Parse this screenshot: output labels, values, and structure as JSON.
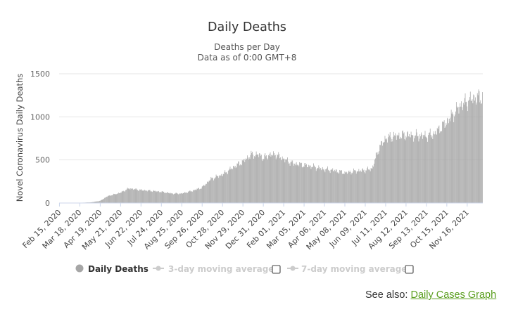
{
  "chart_data": {
    "type": "bar",
    "title": "Daily Deaths",
    "subtitle_line1": "Deaths per Day",
    "subtitle_line2": "Data as of 0:00 GMT+8",
    "ylabel": "Novel Coronavirus Daily Deaths",
    "ylim": [
      0,
      1500
    ],
    "yticks": [
      "0",
      "500",
      "1000",
      "1500"
    ],
    "grid": true,
    "x_start": "2020-02-15",
    "x_end": "2021-12-10",
    "xtick_labels": [
      "Feb 15, 2020",
      "Mar 18, 2020",
      "Apr 19, 2020",
      "May 21, 2020",
      "Jun 22, 2020",
      "Jul 24, 2020",
      "Aug 25, 2020",
      "Sep 26, 2020",
      "Oct 28, 2020",
      "Nov 29, 2020",
      "Dec 31, 2020",
      "Feb 01, 2021",
      "Mar 05, 2021",
      "Apr 06, 2021",
      "May 08, 2021",
      "Jun 09, 2021",
      "Jul 11, 2021",
      "Aug 12, 2021",
      "Sep 13, 2021",
      "Oct 15, 2021",
      "Nov 16, 2021"
    ],
    "series": [
      {
        "name": "Daily Deaths",
        "color": "#a6a6a6",
        "active": true,
        "points": [
          [
            "2020-02-15",
            2
          ],
          [
            "2020-03-18",
            3
          ],
          [
            "2020-04-05",
            8
          ],
          [
            "2020-04-19",
            25
          ],
          [
            "2020-05-01",
            80
          ],
          [
            "2020-05-21",
            120
          ],
          [
            "2020-06-03",
            170
          ],
          [
            "2020-06-22",
            150
          ],
          [
            "2020-07-10",
            140
          ],
          [
            "2020-07-24",
            130
          ],
          [
            "2020-08-10",
            110
          ],
          [
            "2020-08-25",
            110
          ],
          [
            "2020-09-10",
            140
          ],
          [
            "2020-09-26",
            180
          ],
          [
            "2020-10-10",
            280
          ],
          [
            "2020-10-28",
            330
          ],
          [
            "2020-11-15",
            420
          ],
          [
            "2020-11-29",
            480
          ],
          [
            "2020-12-12",
            560
          ],
          [
            "2020-12-25",
            560
          ],
          [
            "2020-12-31",
            520
          ],
          [
            "2021-01-10",
            560
          ],
          [
            "2021-01-20",
            560
          ],
          [
            "2021-02-01",
            510
          ],
          [
            "2021-02-15",
            460
          ],
          [
            "2021-03-05",
            440
          ],
          [
            "2021-03-20",
            420
          ],
          [
            "2021-04-06",
            390
          ],
          [
            "2021-04-20",
            380
          ],
          [
            "2021-05-08",
            350
          ],
          [
            "2021-05-25",
            370
          ],
          [
            "2021-06-09",
            380
          ],
          [
            "2021-06-20",
            400
          ],
          [
            "2021-06-26",
            540
          ],
          [
            "2021-07-01",
            640
          ],
          [
            "2021-07-11",
            750
          ],
          [
            "2021-07-25",
            775
          ],
          [
            "2021-08-12",
            790
          ],
          [
            "2021-08-25",
            780
          ],
          [
            "2021-09-13",
            780
          ],
          [
            "2021-09-25",
            800
          ],
          [
            "2021-10-05",
            870
          ],
          [
            "2021-10-15",
            940
          ],
          [
            "2021-10-25",
            1030
          ],
          [
            "2021-11-05",
            1130
          ],
          [
            "2021-11-16",
            1180
          ],
          [
            "2021-11-28",
            1220
          ],
          [
            "2021-12-10",
            1230
          ]
        ]
      },
      {
        "name": "3-day moving average",
        "color": "#cccccc",
        "active": false
      },
      {
        "name": "7-day moving average",
        "color": "#cccccc",
        "active": false
      }
    ]
  },
  "see_also": {
    "label": "See also: ",
    "link_text": "Daily Cases Graph"
  }
}
